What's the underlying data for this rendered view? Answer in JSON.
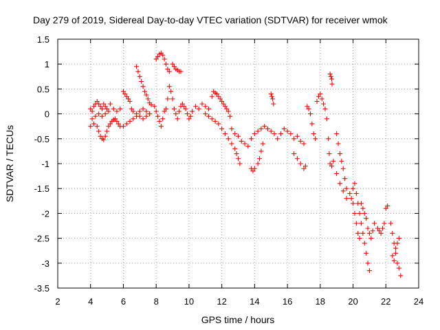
{
  "chart_data": {
    "type": "scatter",
    "title": "Day 279 of 2019, Sidereal Day-to-day VTEC variation (SDTVAR) for receiver wmok",
    "xlabel": "GPS time / hours",
    "ylabel": "SDTVAR / TECUs",
    "xlim": [
      2,
      24
    ],
    "ylim": [
      -3.5,
      1.5
    ],
    "xticks": [
      2,
      4,
      6,
      8,
      10,
      12,
      14,
      16,
      18,
      20,
      22,
      24
    ],
    "yticks": [
      -3.5,
      -3,
      -2.5,
      -2,
      -1.5,
      -1,
      -0.5,
      0,
      0.5,
      1,
      1.5
    ],
    "xtick_labels": [
      "2",
      "4",
      "6",
      "8",
      "10",
      "12",
      "14",
      "16",
      "18",
      "20",
      "22",
      "24"
    ],
    "ytick_labels": [
      "-3.5",
      "-3",
      "-2.5",
      "-2",
      "-1.5",
      "-1",
      "-0.5",
      "0",
      "0.5",
      "1",
      "1.5"
    ],
    "grid": true,
    "marker": "+",
    "color": "#ff0000",
    "series": [
      {
        "name": "SDTVAR",
        "points": [
          [
            4.0,
            0.1
          ],
          [
            4.1,
            0.05
          ],
          [
            4.2,
            0.15
          ],
          [
            4.3,
            0.2
          ],
          [
            4.4,
            0.25
          ],
          [
            4.5,
            0.2
          ],
          [
            4.6,
            0.15
          ],
          [
            4.7,
            0.1
          ],
          [
            4.8,
            0.2
          ],
          [
            4.9,
            0.15
          ],
          [
            5.0,
            0.1
          ],
          [
            5.2,
            0.2
          ],
          [
            5.4,
            0.1
          ],
          [
            5.6,
            0.05
          ],
          [
            5.8,
            0.1
          ],
          [
            4.0,
            -0.25
          ],
          [
            4.2,
            -0.2
          ],
          [
            4.4,
            -0.25
          ],
          [
            4.5,
            -0.35
          ],
          [
            4.6,
            -0.45
          ],
          [
            4.7,
            -0.5
          ],
          [
            4.8,
            -0.52
          ],
          [
            4.9,
            -0.45
          ],
          [
            5.0,
            -0.35
          ],
          [
            5.1,
            -0.25
          ],
          [
            5.2,
            -0.2
          ],
          [
            5.3,
            -0.15
          ],
          [
            5.4,
            -0.12
          ],
          [
            5.5,
            -0.1
          ],
          [
            5.6,
            -0.15
          ],
          [
            5.7,
            -0.2
          ],
          [
            5.8,
            -0.25
          ],
          [
            4.1,
            -0.1
          ],
          [
            4.3,
            -0.05
          ],
          [
            4.5,
            0.0
          ],
          [
            4.7,
            -0.05
          ],
          [
            4.9,
            0.0
          ],
          [
            5.1,
            0.05
          ],
          [
            6.0,
            0.45
          ],
          [
            6.1,
            0.4
          ],
          [
            6.2,
            0.35
          ],
          [
            6.3,
            0.3
          ],
          [
            6.4,
            0.25
          ],
          [
            6.5,
            0.1
          ],
          [
            6.6,
            0.05
          ],
          [
            6.8,
            0.0
          ],
          [
            7.0,
            0.05
          ],
          [
            7.2,
            0.1
          ],
          [
            7.4,
            0.05
          ],
          [
            7.6,
            0.0
          ],
          [
            6.0,
            -0.25
          ],
          [
            6.2,
            -0.2
          ],
          [
            6.4,
            -0.15
          ],
          [
            6.6,
            -0.1
          ],
          [
            6.8,
            -0.05
          ],
          [
            7.0,
            -0.05
          ],
          [
            7.2,
            -0.1
          ],
          [
            7.4,
            -0.05
          ],
          [
            7.6,
            0.0
          ],
          [
            6.8,
            0.95
          ],
          [
            6.9,
            0.85
          ],
          [
            7.0,
            0.75
          ],
          [
            7.1,
            0.65
          ],
          [
            7.2,
            0.55
          ],
          [
            7.3,
            0.45
          ],
          [
            7.4,
            0.38
          ],
          [
            7.5,
            0.3
          ],
          [
            7.6,
            0.22
          ],
          [
            7.7,
            0.18
          ],
          [
            8.0,
            1.1
          ],
          [
            8.1,
            1.15
          ],
          [
            8.2,
            1.2
          ],
          [
            8.3,
            1.22
          ],
          [
            8.4,
            1.18
          ],
          [
            8.5,
            1.1
          ],
          [
            8.6,
            1.0
          ],
          [
            8.7,
            0.9
          ],
          [
            8.8,
            0.85
          ],
          [
            9.0,
            1.0
          ],
          [
            9.1,
            0.95
          ],
          [
            9.2,
            0.9
          ],
          [
            9.3,
            0.88
          ],
          [
            9.4,
            0.85
          ],
          [
            9.5,
            0.85
          ],
          [
            7.9,
            0.15
          ],
          [
            8.0,
            0.05
          ],
          [
            8.1,
            -0.05
          ],
          [
            8.2,
            -0.15
          ],
          [
            8.3,
            -0.25
          ],
          [
            8.4,
            -0.1
          ],
          [
            8.5,
            0.05
          ],
          [
            8.6,
            0.1
          ],
          [
            8.7,
            0.3
          ],
          [
            8.8,
            0.55
          ],
          [
            8.9,
            0.45
          ],
          [
            9.0,
            0.3
          ],
          [
            9.1,
            0.1
          ],
          [
            9.2,
            0.0
          ],
          [
            9.3,
            -0.1
          ],
          [
            9.4,
            0.05
          ],
          [
            9.5,
            0.15
          ],
          [
            9.6,
            0.2
          ],
          [
            9.7,
            0.15
          ],
          [
            9.8,
            0.1
          ],
          [
            9.9,
            0.0
          ],
          [
            10.0,
            -0.1
          ],
          [
            10.1,
            -0.05
          ],
          [
            10.2,
            0.05
          ],
          [
            10.4,
            0.15
          ],
          [
            10.6,
            0.1
          ],
          [
            10.8,
            0.2
          ],
          [
            11.0,
            0.15
          ],
          [
            11.0,
            0.0
          ],
          [
            11.2,
            0.1
          ],
          [
            11.4,
            0.35
          ],
          [
            11.5,
            0.45
          ],
          [
            11.6,
            0.42
          ],
          [
            11.7,
            0.4
          ],
          [
            11.8,
            0.35
          ],
          [
            11.9,
            0.3
          ],
          [
            12.0,
            0.25
          ],
          [
            12.1,
            0.2
          ],
          [
            12.2,
            0.15
          ],
          [
            12.3,
            0.1
          ],
          [
            12.4,
            0.05
          ],
          [
            12.5,
            -0.05
          ],
          [
            11.2,
            -0.05
          ],
          [
            11.4,
            -0.1
          ],
          [
            11.6,
            -0.15
          ],
          [
            11.8,
            -0.2
          ],
          [
            12.0,
            -0.3
          ],
          [
            12.2,
            -0.4
          ],
          [
            12.4,
            -0.5
          ],
          [
            12.6,
            -0.6
          ],
          [
            12.8,
            -0.7
          ],
          [
            12.6,
            -0.3
          ],
          [
            12.8,
            -0.4
          ],
          [
            13.0,
            -0.45
          ],
          [
            13.2,
            -0.55
          ],
          [
            13.4,
            -0.6
          ],
          [
            13.6,
            -0.65
          ],
          [
            13.8,
            -0.5
          ],
          [
            14.0,
            -0.4
          ],
          [
            14.2,
            -0.35
          ],
          [
            14.4,
            -0.3
          ],
          [
            14.6,
            -0.25
          ],
          [
            14.8,
            -0.3
          ],
          [
            15.0,
            -0.35
          ],
          [
            12.9,
            -0.8
          ],
          [
            13.0,
            -0.9
          ],
          [
            13.1,
            -1.0
          ],
          [
            13.8,
            -1.1
          ],
          [
            13.9,
            -1.15
          ],
          [
            14.0,
            -1.1
          ],
          [
            14.2,
            -1.0
          ],
          [
            14.3,
            -0.9
          ],
          [
            14.4,
            -0.75
          ],
          [
            14.5,
            -0.6
          ],
          [
            15.0,
            0.4
          ],
          [
            15.05,
            0.35
          ],
          [
            15.1,
            0.3
          ],
          [
            15.15,
            0.2
          ],
          [
            15.2,
            -0.4
          ],
          [
            15.4,
            -0.5
          ],
          [
            15.6,
            -0.4
          ],
          [
            15.8,
            -0.3
          ],
          [
            16.0,
            -0.35
          ],
          [
            16.2,
            -0.4
          ],
          [
            16.4,
            -0.5
          ],
          [
            16.6,
            -0.45
          ],
          [
            16.8,
            -0.55
          ],
          [
            17.0,
            -0.6
          ],
          [
            16.4,
            -0.8
          ],
          [
            16.6,
            -0.9
          ],
          [
            16.8,
            -1.0
          ],
          [
            17.0,
            -1.1
          ],
          [
            17.1,
            -1.05
          ],
          [
            17.2,
            0.15
          ],
          [
            17.3,
            0.1
          ],
          [
            17.4,
            0.0
          ],
          [
            17.5,
            -0.2
          ],
          [
            17.6,
            -0.4
          ],
          [
            17.7,
            -0.5
          ],
          [
            17.8,
            0.25
          ],
          [
            17.9,
            0.35
          ],
          [
            18.0,
            0.4
          ],
          [
            18.1,
            0.3
          ],
          [
            18.2,
            0.2
          ],
          [
            18.3,
            0.1
          ],
          [
            18.4,
            -0.1
          ],
          [
            18.5,
            -0.5
          ],
          [
            18.55,
            -0.8
          ],
          [
            18.6,
            -1.0
          ],
          [
            18.7,
            -1.05
          ],
          [
            18.8,
            -0.95
          ],
          [
            18.6,
            0.8
          ],
          [
            18.65,
            0.75
          ],
          [
            18.7,
            0.7
          ],
          [
            18.72,
            0.6
          ],
          [
            19.0,
            -0.4
          ],
          [
            19.1,
            -0.6
          ],
          [
            19.2,
            -0.8
          ],
          [
            19.3,
            -0.95
          ],
          [
            19.4,
            -1.1
          ],
          [
            19.5,
            -1.3
          ],
          [
            19.6,
            -1.5
          ],
          [
            19.0,
            -1.2
          ],
          [
            19.2,
            -1.4
          ],
          [
            19.4,
            -1.55
          ],
          [
            19.6,
            -1.7
          ],
          [
            19.8,
            -1.6
          ],
          [
            19.9,
            -1.7
          ],
          [
            20.0,
            -1.5
          ],
          [
            20.1,
            -1.4
          ],
          [
            20.2,
            -1.6
          ],
          [
            20.3,
            -1.8
          ],
          [
            20.4,
            -2.0
          ],
          [
            20.5,
            -2.2
          ],
          [
            20.6,
            -2.4
          ],
          [
            20.7,
            -2.6
          ],
          [
            20.8,
            -2.8
          ],
          [
            20.9,
            -3.0
          ],
          [
            21.0,
            -3.15
          ],
          [
            20.0,
            -1.8
          ],
          [
            20.1,
            -2.0
          ],
          [
            20.2,
            -2.2
          ],
          [
            20.3,
            -2.4
          ],
          [
            20.4,
            -2.5
          ],
          [
            20.5,
            -1.8
          ],
          [
            20.6,
            -1.9
          ],
          [
            20.7,
            -2.0
          ],
          [
            20.8,
            -2.1
          ],
          [
            20.9,
            -2.3
          ],
          [
            21.0,
            -2.4
          ],
          [
            21.1,
            -2.5
          ],
          [
            21.2,
            -2.35
          ],
          [
            21.3,
            -2.2
          ],
          [
            21.5,
            -2.3
          ],
          [
            21.6,
            -2.35
          ],
          [
            21.7,
            -2.4
          ],
          [
            21.8,
            -2.3
          ],
          [
            21.9,
            -2.2
          ],
          [
            22.0,
            -1.9
          ],
          [
            22.1,
            -1.85
          ],
          [
            22.3,
            -2.2
          ],
          [
            22.4,
            -2.4
          ],
          [
            22.5,
            -2.6
          ],
          [
            22.6,
            -2.8
          ],
          [
            22.7,
            -3.0
          ],
          [
            22.8,
            -3.1
          ],
          [
            22.9,
            -3.25
          ],
          [
            22.4,
            -2.85
          ],
          [
            22.5,
            -2.95
          ],
          [
            22.6,
            -2.7
          ],
          [
            22.7,
            -2.6
          ],
          [
            22.8,
            -2.5
          ]
        ]
      }
    ]
  }
}
